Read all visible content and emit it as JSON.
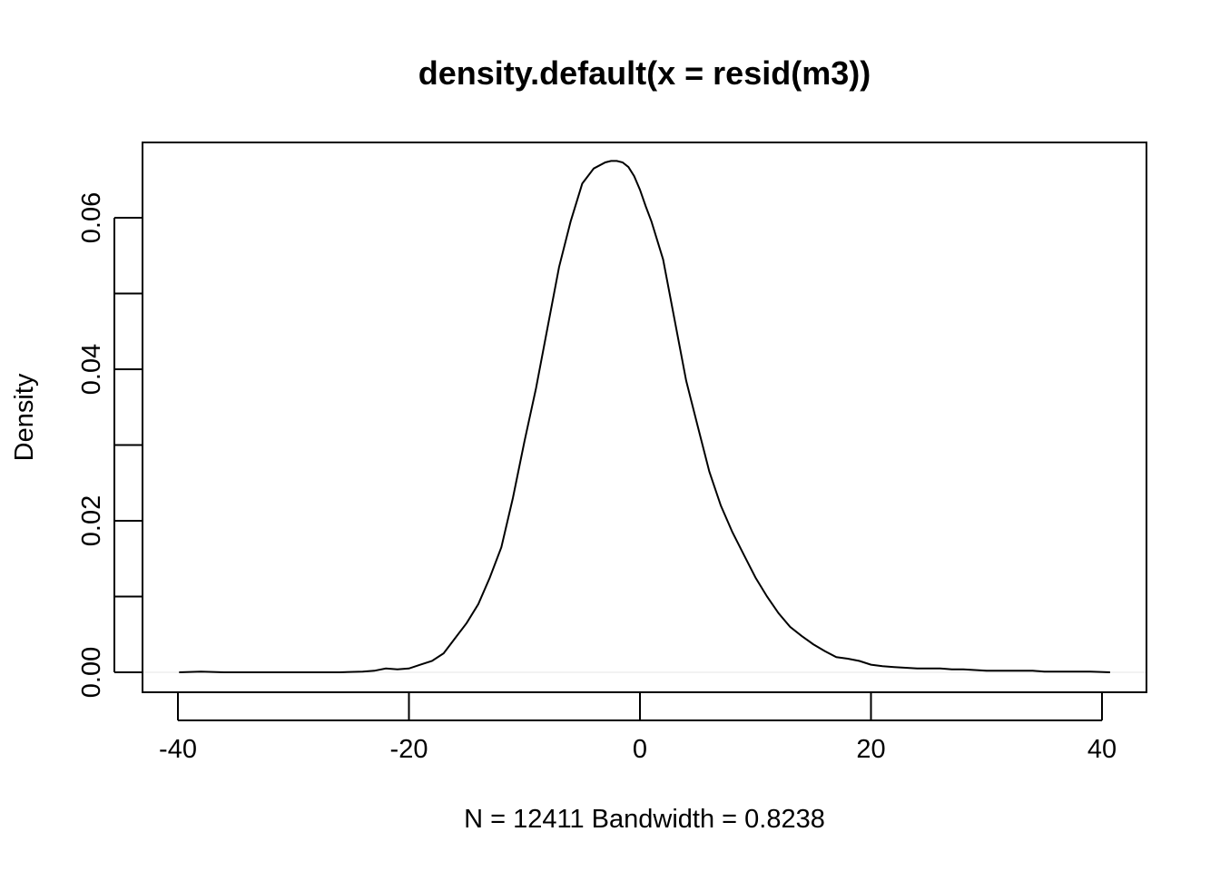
{
  "chart_data": {
    "type": "line",
    "title": "density.default(x = resid(m3))",
    "xlabel": "N = 12411   Bandwidth = 0.8238",
    "ylabel": "Density",
    "xlim": [
      -40,
      40
    ],
    "ylim": [
      0,
      0.07
    ],
    "x_ticks": [
      -40,
      -20,
      0,
      20,
      40
    ],
    "x_tick_labels": [
      "-40",
      "-20",
      "0",
      "20",
      "40"
    ],
    "y_ticks": [
      0,
      0.01,
      0.02,
      0.03,
      0.04,
      0.05,
      0.06
    ],
    "y_tick_labels": [
      "0.00",
      "",
      "0.02",
      "",
      "0.04",
      "",
      "0.06"
    ],
    "grid": false,
    "legend": "none",
    "series": [
      {
        "color": "#000000",
        "x": [
          -39.9,
          -38,
          -36,
          -34,
          -32,
          -30,
          -28,
          -26,
          -24,
          -23,
          -22,
          -21,
          -20,
          -19,
          -18,
          -17,
          -16,
          -15,
          -14,
          -13,
          -12,
          -11,
          -10,
          -9,
          -8,
          -7,
          -6,
          -5,
          -4,
          -3,
          -2.5,
          -2,
          -1.5,
          -1,
          -0.5,
          0,
          0.5,
          1,
          2,
          3,
          4,
          5,
          6,
          7,
          8,
          9,
          10,
          11,
          12,
          13,
          14,
          15,
          16,
          17,
          18,
          19,
          20,
          21,
          22,
          23,
          24,
          25,
          26,
          27,
          28,
          29,
          30,
          31,
          32,
          33,
          34,
          35,
          36,
          37,
          38,
          39,
          40.7
        ],
        "y": [
          0.0,
          0.0001,
          0.0,
          0.0,
          0.0,
          0.0,
          0.0,
          0.0,
          0.0001,
          0.0002,
          0.0005,
          0.0004,
          0.0005,
          0.001,
          0.0015,
          0.0025,
          0.0045,
          0.0065,
          0.009,
          0.0125,
          0.0165,
          0.023,
          0.0305,
          0.0375,
          0.0455,
          0.0535,
          0.0595,
          0.0645,
          0.0665,
          0.0673,
          0.0675,
          0.0675,
          0.0673,
          0.0667,
          0.0655,
          0.0637,
          0.0615,
          0.0595,
          0.0545,
          0.0465,
          0.0385,
          0.0325,
          0.0265,
          0.022,
          0.0185,
          0.0155,
          0.0125,
          0.01,
          0.0078,
          0.006,
          0.0048,
          0.0037,
          0.0028,
          0.002,
          0.0018,
          0.0015,
          0.001,
          0.0008,
          0.0007,
          0.0006,
          0.0005,
          0.0005,
          0.0005,
          0.0004,
          0.0004,
          0.0003,
          0.0002,
          0.0002,
          0.0002,
          0.0002,
          0.0002,
          0.0001,
          0.0001,
          0.0001,
          0.0001,
          0.0001,
          0.0
        ]
      }
    ]
  }
}
